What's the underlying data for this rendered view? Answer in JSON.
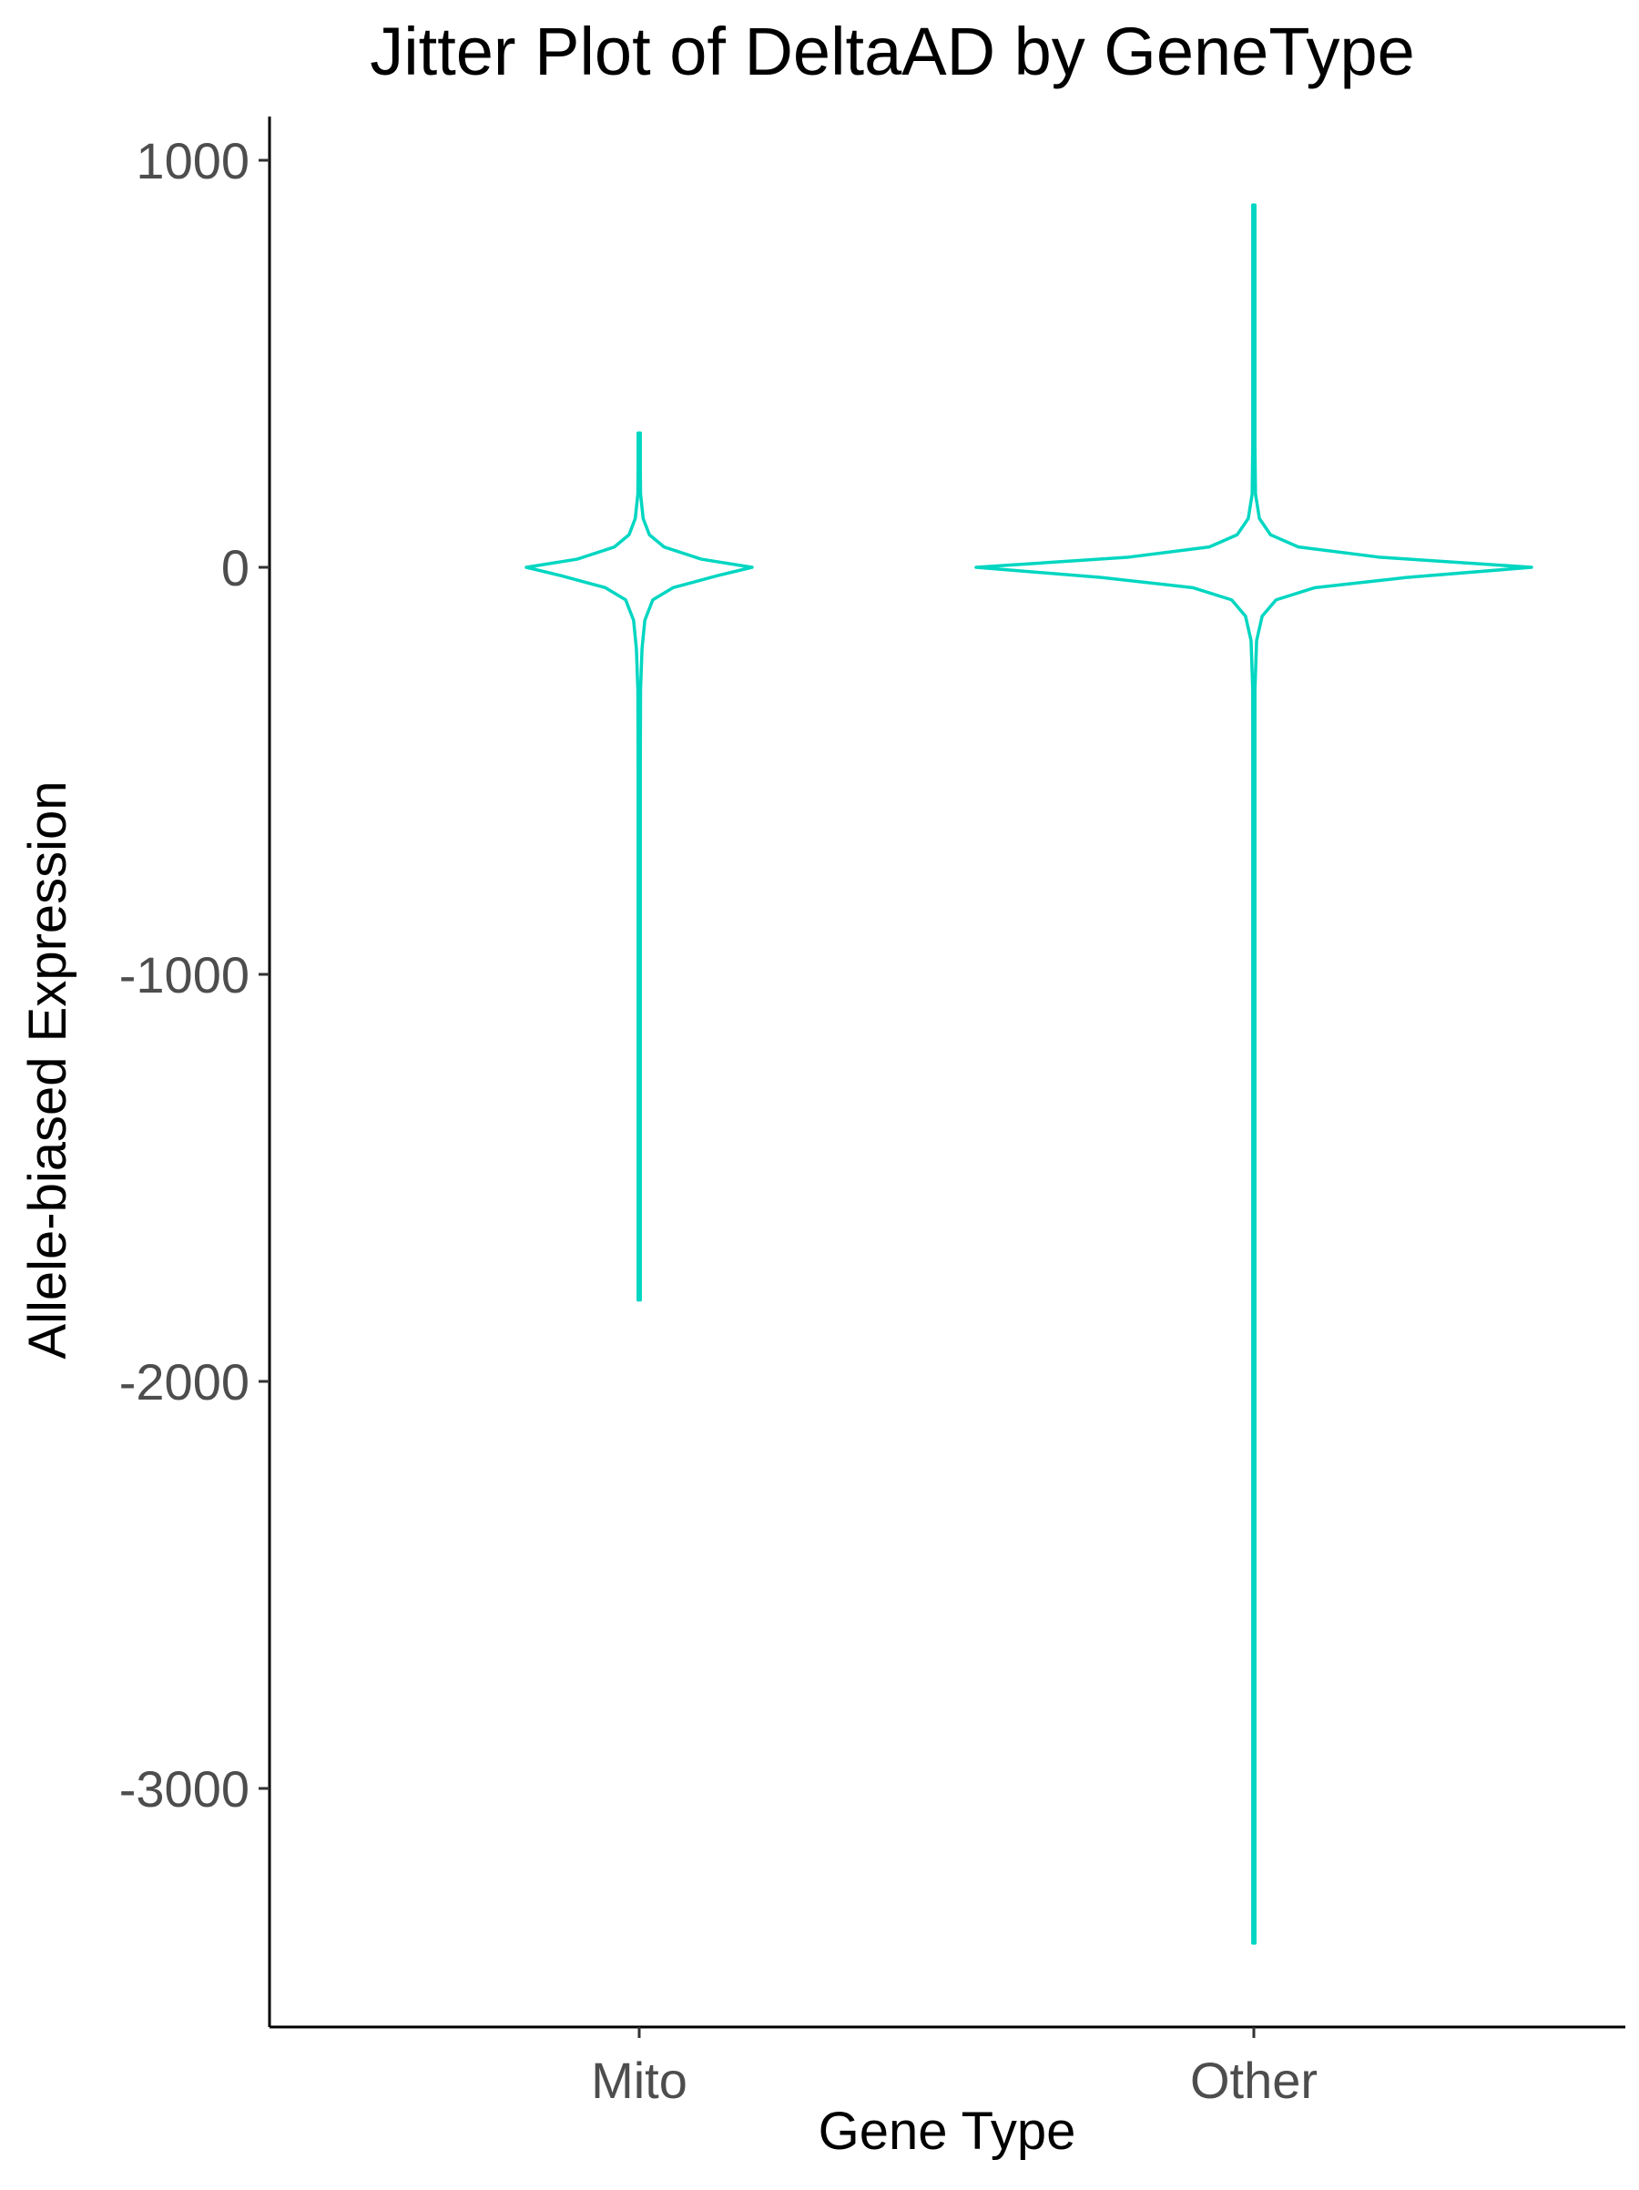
{
  "chart_data": {
    "type": "violin",
    "title": "Jitter Plot of DeltaAD by GeneType",
    "xlabel": "Gene Type",
    "ylabel": "Allele-biased Expression",
    "categories": [
      "Mito",
      "Other"
    ],
    "yticks": [
      1000,
      0,
      -1000,
      -2000,
      -3000
    ],
    "ytick_labels": [
      "1000",
      "0",
      "-1000",
      "-2000",
      "-3000"
    ],
    "ylim": [
      -3550,
      1100
    ],
    "grid": false,
    "legend": "none",
    "series": [
      {
        "category": "Mito",
        "min": -1800,
        "max": 330,
        "density": [
          [
            330,
            0.004
          ],
          [
            250,
            0.008
          ],
          [
            180,
            0.012
          ],
          [
            120,
            0.035
          ],
          [
            80,
            0.09
          ],
          [
            50,
            0.22
          ],
          [
            20,
            0.55
          ],
          [
            0,
            1.0
          ],
          [
            -20,
            0.7
          ],
          [
            -50,
            0.3
          ],
          [
            -80,
            0.12
          ],
          [
            -130,
            0.05
          ],
          [
            -200,
            0.025
          ],
          [
            -300,
            0.012
          ],
          [
            -500,
            0.005
          ],
          [
            -1000,
            0.004
          ],
          [
            -1800,
            0.004
          ]
        ]
      },
      {
        "category": "Other",
        "min": -3380,
        "max": 890,
        "density": [
          [
            890,
            0.002
          ],
          [
            600,
            0.002
          ],
          [
            300,
            0.003
          ],
          [
            180,
            0.006
          ],
          [
            120,
            0.02
          ],
          [
            80,
            0.06
          ],
          [
            50,
            0.16
          ],
          [
            25,
            0.45
          ],
          [
            0,
            1.0
          ],
          [
            -25,
            0.55
          ],
          [
            -50,
            0.22
          ],
          [
            -80,
            0.08
          ],
          [
            -120,
            0.03
          ],
          [
            -180,
            0.01
          ],
          [
            -300,
            0.004
          ],
          [
            -500,
            0.003
          ],
          [
            -1000,
            0.002
          ],
          [
            -2000,
            0.002
          ],
          [
            -3380,
            0.002
          ]
        ]
      }
    ],
    "colors": {
      "outline": "#00d6c1",
      "axis": "#000000",
      "tick_label": "#4d4d4d"
    }
  }
}
